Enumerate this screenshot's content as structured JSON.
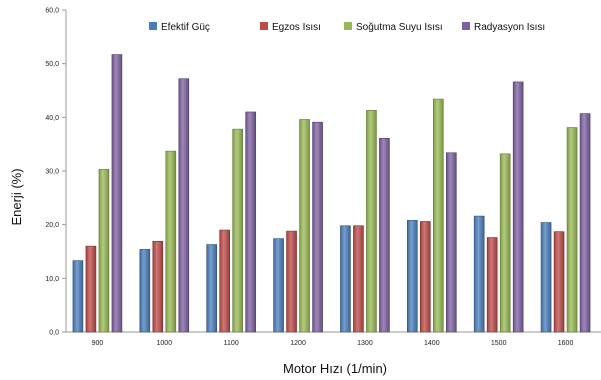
{
  "chart_data": {
    "type": "bar",
    "title": "",
    "xlabel": "Motor Hızı (1/min)",
    "ylabel": "Enerji (%)",
    "ylim": [
      0,
      60
    ],
    "yticks": [
      "0,0",
      "10,0",
      "20,0",
      "30,0",
      "40,0",
      "50,0",
      "60,0"
    ],
    "categories": [
      "900",
      "1000",
      "1100",
      "1200",
      "1300",
      "1400",
      "1500",
      "1600"
    ],
    "legend_position": "top",
    "grid": false,
    "series": [
      {
        "name": "Efektif Güç",
        "color": "#4a7ebb",
        "values": [
          13.3,
          15.4,
          16.3,
          17.4,
          19.8,
          20.8,
          21.6,
          20.4
        ]
      },
      {
        "name": "Egzos Isısı",
        "color": "#be4b48",
        "values": [
          16.0,
          16.9,
          19.0,
          18.8,
          19.8,
          20.6,
          17.6,
          18.7
        ]
      },
      {
        "name": "Soğutma Suyu Isısı",
        "color": "#98b954",
        "values": [
          30.3,
          33.7,
          37.8,
          39.6,
          41.3,
          43.4,
          33.2,
          38.1
        ]
      },
      {
        "name": "Radyasyon Isısı",
        "color": "#7d60a0",
        "values": [
          51.7,
          47.2,
          41.0,
          39.1,
          36.1,
          33.4,
          46.6,
          40.7
        ]
      }
    ]
  }
}
